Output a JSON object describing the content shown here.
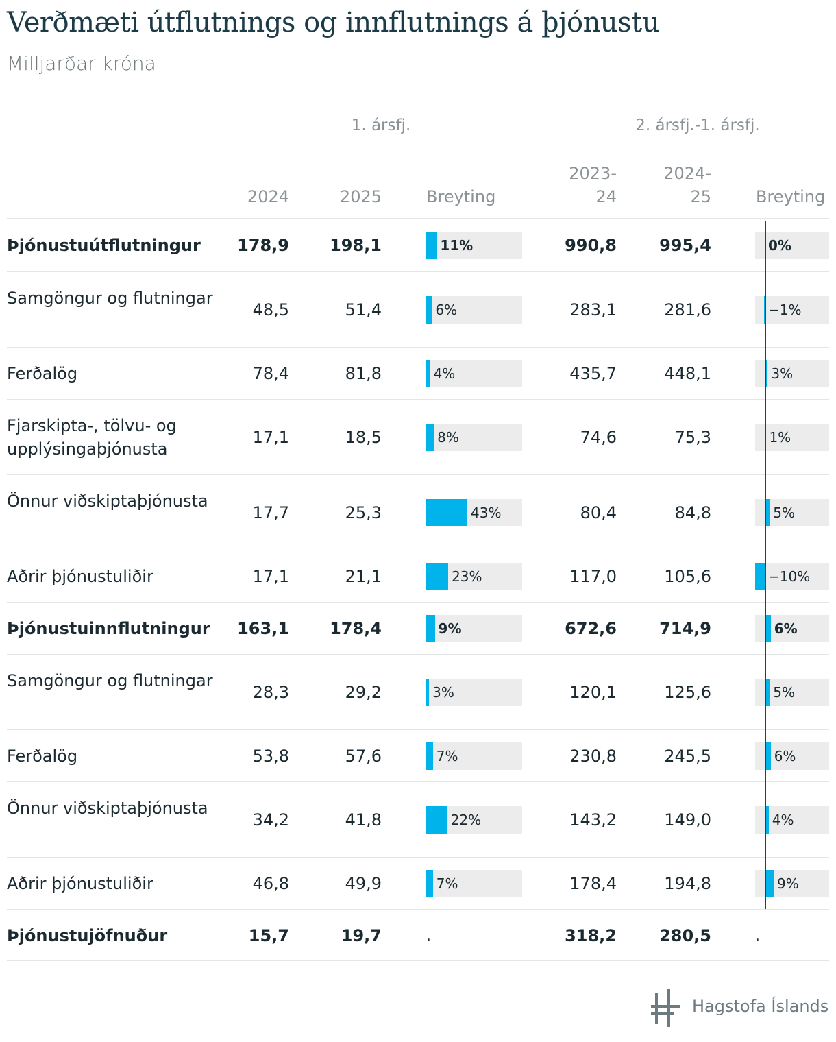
{
  "title": "Verðmæti útflutnings og innflutnings á þjónustu",
  "subtitle": "Milljarðar króna",
  "groups": {
    "q1": "1. ársfj.",
    "rolling": "2. ársfj.-1. ársfj."
  },
  "columns": {
    "c2024": "2024",
    "c2025": "2025",
    "breyting1": "Breyting",
    "c2324_a": "2023-",
    "c2324_b": "24",
    "c2425_a": "2024-",
    "c2425_b": "25",
    "breyting2": "Breyting"
  },
  "colors": {
    "bar": "#00b3ea",
    "bar_bg": "#ececec",
    "zero_line": "#333d42"
  },
  "logo": {
    "text": "Hagstofa Íslands",
    "icon": "hagstofa-logo-icon"
  },
  "chart_data": {
    "type": "table",
    "rows": [
      {
        "label": "Þjónustuútflutningur",
        "bold": true,
        "v2024": "178,9",
        "v2025": "198,1",
        "ch1": 11,
        "ch1_label": "11%",
        "v2324": "990,8",
        "v2425": "995,4",
        "ch2": 0,
        "ch2_label": "0%"
      },
      {
        "label": "Samgöngur og flutningar",
        "bold": false,
        "v2024": "48,5",
        "v2025": "51,4",
        "ch1": 6,
        "ch1_label": "6%",
        "v2324": "283,1",
        "v2425": "281,6",
        "ch2": -1,
        "ch2_label": "−1%"
      },
      {
        "label": "Ferðalög",
        "bold": false,
        "v2024": "78,4",
        "v2025": "81,8",
        "ch1": 4,
        "ch1_label": "4%",
        "v2324": "435,7",
        "v2425": "448,1",
        "ch2": 3,
        "ch2_label": "3%"
      },
      {
        "label": "Fjarskipta-, tölvu- og upplýsingaþjónusta",
        "bold": false,
        "v2024": "17,1",
        "v2025": "18,5",
        "ch1": 8,
        "ch1_label": "8%",
        "v2324": "74,6",
        "v2425": "75,3",
        "ch2": 1,
        "ch2_label": "1%"
      },
      {
        "label": "Önnur viðskiptaþjónusta",
        "bold": false,
        "v2024": "17,7",
        "v2025": "25,3",
        "ch1": 43,
        "ch1_label": "43%",
        "v2324": "80,4",
        "v2425": "84,8",
        "ch2": 5,
        "ch2_label": "5%"
      },
      {
        "label": "Aðrir þjónustuliðir",
        "bold": false,
        "v2024": "17,1",
        "v2025": "21,1",
        "ch1": 23,
        "ch1_label": "23%",
        "v2324": "117,0",
        "v2425": "105,6",
        "ch2": -10,
        "ch2_label": "−10%"
      },
      {
        "label": "Þjónustuinnflutningur",
        "bold": true,
        "v2024": "163,1",
        "v2025": "178,4",
        "ch1": 9,
        "ch1_label": "9%",
        "v2324": "672,6",
        "v2425": "714,9",
        "ch2": 6,
        "ch2_label": "6%"
      },
      {
        "label": "Samgöngur og flutningar",
        "bold": false,
        "v2024": "28,3",
        "v2025": "29,2",
        "ch1": 3,
        "ch1_label": "3%",
        "v2324": "120,1",
        "v2425": "125,6",
        "ch2": 5,
        "ch2_label": "5%"
      },
      {
        "label": "Ferðalög",
        "bold": false,
        "v2024": "53,8",
        "v2025": "57,6",
        "ch1": 7,
        "ch1_label": "7%",
        "v2324": "230,8",
        "v2425": "245,5",
        "ch2": 6,
        "ch2_label": "6%"
      },
      {
        "label": "Önnur viðskiptaþjónusta",
        "bold": false,
        "v2024": "34,2",
        "v2025": "41,8",
        "ch1": 22,
        "ch1_label": "22%",
        "v2324": "143,2",
        "v2425": "149,0",
        "ch2": 4,
        "ch2_label": "4%"
      },
      {
        "label": "Aðrir þjónustuliðir",
        "bold": false,
        "v2024": "46,8",
        "v2025": "49,9",
        "ch1": 7,
        "ch1_label": "7%",
        "v2324": "178,4",
        "v2425": "194,8",
        "ch2": 9,
        "ch2_label": "9%"
      },
      {
        "label": "Þjónustujöfnuður",
        "bold": true,
        "v2024": "15,7",
        "v2025": "19,7",
        "ch1": null,
        "ch1_label": ".",
        "v2324": "318,2",
        "v2425": "280,5",
        "ch2": null,
        "ch2_label": "."
      }
    ]
  }
}
